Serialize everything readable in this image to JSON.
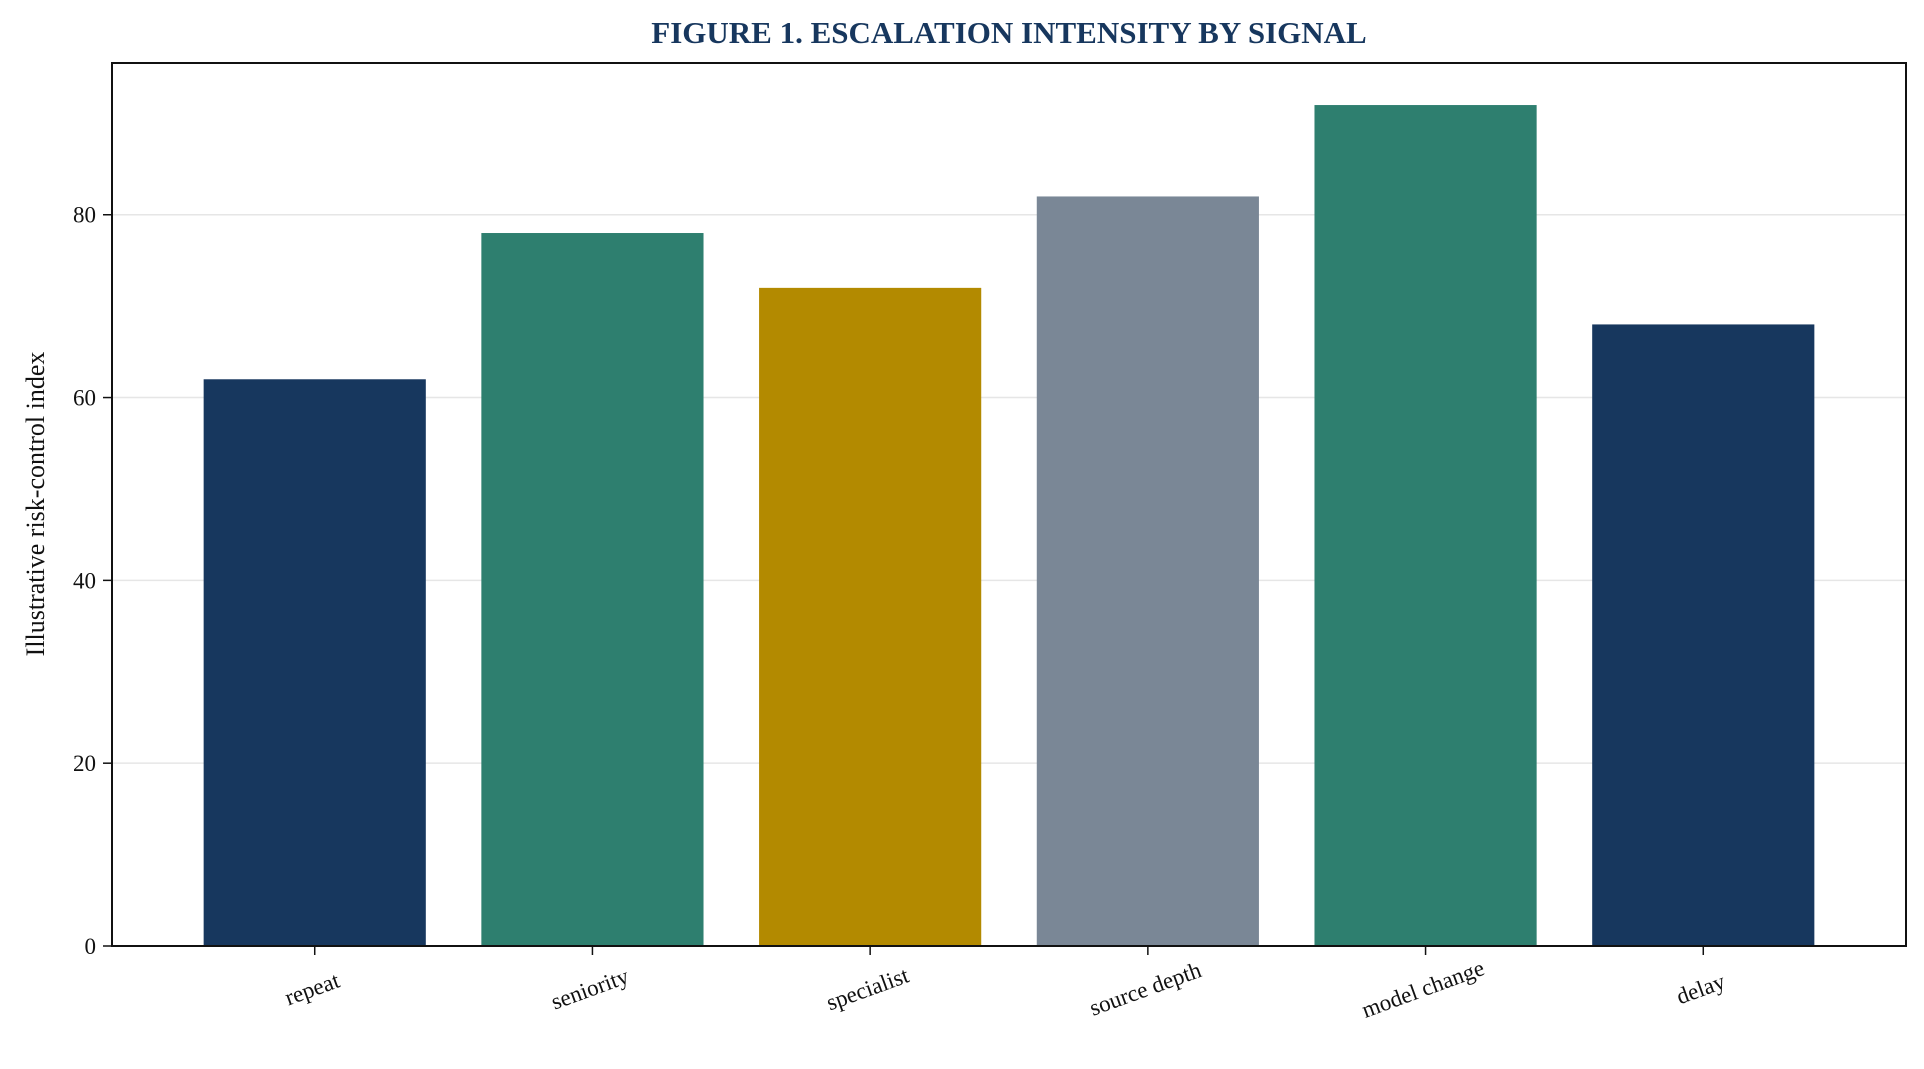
{
  "chart_data": {
    "type": "bar",
    "title": "FIGURE 1. ESCALATION INTENSITY BY SIGNAL",
    "xlabel": "",
    "ylabel": "Illustrative risk-control index",
    "categories": [
      "repeat",
      "seniority",
      "specialist",
      "source depth",
      "model change",
      "delay"
    ],
    "values": [
      62,
      78,
      72,
      82,
      92,
      68
    ],
    "colors": [
      "#17375e",
      "#2e7f6f",
      "#b38a00",
      "#7a8796",
      "#2e7f6f",
      "#17375e"
    ],
    "ylim": [
      0,
      96.6
    ],
    "yticks": [
      0,
      20,
      40,
      60,
      80
    ],
    "grid": "horizontal",
    "legend": "none"
  }
}
